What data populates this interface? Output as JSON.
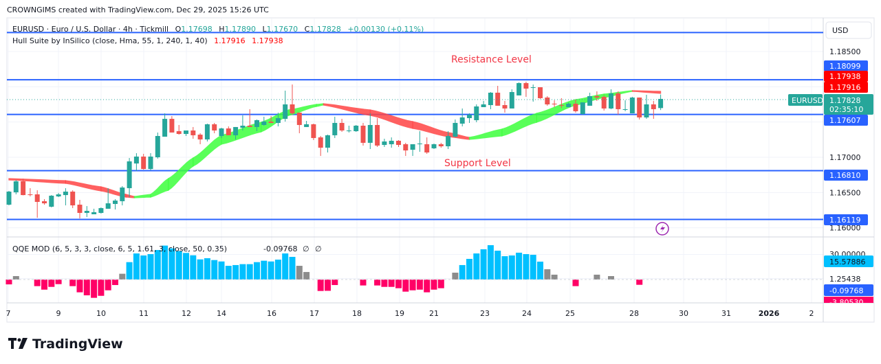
{
  "header": {
    "credit": "CROWNGIMS created with TradingView.com, Dec 29, 2025 15:26 UTC"
  },
  "legend": {
    "symbol_line": "EURUSD · Euro / U.S. Dollar · 4h · Tickmill",
    "o_label": "O",
    "o": "1.17698",
    "h_label": "H",
    "h": "1.17890",
    "l_label": "L",
    "l": "1.17670",
    "c_label": "C",
    "c": "1.17828",
    "change": "+0.00130 (+0.11%)",
    "hull_name": "Hull Suite by InSilico (close, Hma, 55, 1, 240, 1, 40)",
    "hull_v1": "1.17916",
    "hull_v2": "1.17938",
    "qqe_name": "QQE MOD (6, 5, 3, 3, close, 6, 5, 1.61, 3, close, 50, 0.35)",
    "qqe_value": "-0.09768",
    "qqe_null1": "∅",
    "qqe_null2": "∅"
  },
  "annotations": {
    "resistance": "Resistance Level",
    "support": "Support Level"
  },
  "price_axis": {
    "currency": "USD",
    "ticks": [
      "1.18500",
      "1.17000",
      "1.16500",
      "1.16000"
    ],
    "tick_values": [
      1.185,
      1.17,
      1.165,
      1.16
    ],
    "symbol_tag": "EURUSD",
    "last_price": "1.17828",
    "countdown": "02:35:10",
    "level_labels": [
      "1.18099",
      "1.17938",
      "1.17916",
      "1.17607",
      "1.16810",
      "1.16119"
    ]
  },
  "qqe_axis": {
    "ticks": [
      "30.00000",
      "1.25438"
    ],
    "labels": [
      "15.57886",
      "-0.09768",
      "-3.80530"
    ]
  },
  "time_axis": {
    "labels": [
      "7",
      "9",
      "10",
      "11",
      "12",
      "14",
      "16",
      "17",
      "18",
      "19",
      "21",
      "23",
      "24",
      "25",
      "28",
      "30",
      "31",
      "2026",
      "2"
    ]
  },
  "footer": {
    "brand": "TradingView"
  },
  "colors": {
    "up": "#26a69a",
    "down": "#ef5350",
    "level_line": "#2962ff",
    "hull_green": "#3dff3d",
    "hull_red": "#ff4545",
    "qqe_blue": "#00c0ff",
    "qqe_red": "#ff0066",
    "qqe_gray": "#8c8c8c",
    "annotation": "#f23645"
  },
  "chart_data": [
    {
      "type": "candlestick",
      "title": "EURUSD · Euro / U.S. Dollar · 4h · Tickmill",
      "ylim": [
        1.1595,
        1.1895
      ],
      "horizontal_levels": [
        1.18769,
        1.18099,
        1.17607,
        1.1681,
        1.16119
      ],
      "ohlc": [
        [
          1.16328,
          1.16523,
          1.16318,
          1.16513
        ],
        [
          1.16503,
          1.16679,
          1.16474,
          1.16659
        ],
        [
          1.16659,
          1.16698,
          1.1646,
          1.16464
        ],
        [
          1.16474,
          1.16562,
          1.16445,
          1.16464
        ],
        [
          1.16474,
          1.16532,
          1.16143,
          1.16367
        ],
        [
          1.16377,
          1.16406,
          1.16328,
          1.16347
        ],
        [
          1.16299,
          1.16464,
          1.16289,
          1.16455
        ],
        [
          1.16445,
          1.16494,
          1.16435,
          1.16474
        ],
        [
          1.16464,
          1.16562,
          1.16318,
          1.16513
        ],
        [
          1.16513,
          1.16532,
          1.16279,
          1.16318
        ],
        [
          1.16328,
          1.16396,
          1.16133,
          1.16211
        ],
        [
          1.16211,
          1.16308,
          1.16153,
          1.1624
        ],
        [
          1.16192,
          1.1627,
          1.16192,
          1.16221
        ],
        [
          1.16211,
          1.16289,
          1.16201,
          1.16279
        ],
        [
          1.1627,
          1.16562,
          1.1627,
          1.16347
        ],
        [
          1.16338,
          1.16406,
          1.1626,
          1.16386
        ],
        [
          1.16377,
          1.16591,
          1.16318,
          1.16571
        ],
        [
          1.16562,
          1.1699,
          1.16435,
          1.16942
        ],
        [
          1.16912,
          1.17058,
          1.16805,
          1.1701
        ],
        [
          1.1701,
          1.17049,
          1.16825,
          1.16834
        ],
        [
          1.16834,
          1.17058,
          1.16815,
          1.1701
        ],
        [
          1.17,
          1.17351,
          1.16981,
          1.17302
        ],
        [
          1.17292,
          1.17623,
          1.17292,
          1.17545
        ],
        [
          1.17545,
          1.17584,
          1.17351,
          1.17351
        ],
        [
          1.1737,
          1.17458,
          1.17321,
          1.17331
        ],
        [
          1.17331,
          1.1738,
          1.17302,
          1.1738
        ],
        [
          1.1738,
          1.17429,
          1.17263,
          1.17312
        ],
        [
          1.17321,
          1.17341,
          1.17185,
          1.17253
        ],
        [
          1.17253,
          1.17477,
          1.17224,
          1.17468
        ],
        [
          1.17468,
          1.17487,
          1.17341,
          1.1738
        ],
        [
          1.17302,
          1.17419,
          1.17273,
          1.17409
        ],
        [
          1.17409,
          1.17438,
          1.17312,
          1.17312
        ],
        [
          1.17312,
          1.17429,
          1.17253,
          1.17429
        ],
        [
          1.17419,
          1.17594,
          1.1738,
          1.17448
        ],
        [
          1.17448,
          1.17682,
          1.17429,
          1.17429
        ],
        [
          1.17429,
          1.17536,
          1.1737,
          1.17526
        ],
        [
          1.17458,
          1.17575,
          1.17448,
          1.17506
        ],
        [
          1.17506,
          1.17584,
          1.17487,
          1.17487
        ],
        [
          1.17487,
          1.17633,
          1.17438,
          1.17555
        ],
        [
          1.17545,
          1.17945,
          1.17506,
          1.1775
        ],
        [
          1.1775,
          1.18032,
          1.17604,
          1.17623
        ],
        [
          1.17633,
          1.17633,
          1.17341,
          1.17458
        ],
        [
          1.17429,
          1.17516,
          1.17429,
          1.17468
        ],
        [
          1.17468,
          1.17477,
          1.17244,
          1.17273
        ],
        [
          1.17282,
          1.17302,
          1.17019,
          1.17136
        ],
        [
          1.17136,
          1.17321,
          1.17068,
          1.17312
        ],
        [
          1.17312,
          1.17575,
          1.17273,
          1.17487
        ],
        [
          1.17487,
          1.17545,
          1.1736,
          1.1738
        ],
        [
          1.1737,
          1.17448,
          1.17351,
          1.1738
        ],
        [
          1.1737,
          1.17458,
          1.1736,
          1.17448
        ],
        [
          1.17448,
          1.17487,
          1.17166,
          1.17205
        ],
        [
          1.17205,
          1.17623,
          1.17117,
          1.17458
        ],
        [
          1.17458,
          1.17555,
          1.17146,
          1.17166
        ],
        [
          1.17175,
          1.17263,
          1.17146,
          1.17224
        ],
        [
          1.17185,
          1.17282,
          1.17136,
          1.17234
        ],
        [
          1.17234,
          1.17244,
          1.17146,
          1.17175
        ],
        [
          1.17185,
          1.17205,
          1.17019,
          1.17097
        ],
        [
          1.17107,
          1.17185,
          1.17019,
          1.17185
        ],
        [
          1.17185,
          1.1737,
          1.17078,
          1.17195
        ],
        [
          1.17185,
          1.17282,
          1.17049,
          1.17068
        ],
        [
          1.17127,
          1.17195,
          1.17117,
          1.17185
        ],
        [
          1.17185,
          1.17205,
          1.17136,
          1.17156
        ],
        [
          1.17156,
          1.1737,
          1.17117,
          1.17302
        ],
        [
          1.17292,
          1.17536,
          1.17282,
          1.17487
        ],
        [
          1.17477,
          1.17692,
          1.17438,
          1.17565
        ],
        [
          1.17555,
          1.17623,
          1.17487,
          1.17604
        ],
        [
          1.17526,
          1.1775,
          1.17497,
          1.17721
        ],
        [
          1.17711,
          1.17799,
          1.17711,
          1.1775
        ],
        [
          1.1774,
          1.17925,
          1.17682,
          1.17916
        ],
        [
          1.17916,
          1.18013,
          1.17731,
          1.17731
        ],
        [
          1.1774,
          1.17799,
          1.17633,
          1.17692
        ],
        [
          1.17692,
          1.17964,
          1.17692,
          1.17925
        ],
        [
          1.17877,
          1.18062,
          1.17877,
          1.18052
        ],
        [
          1.18052,
          1.18071,
          1.17857,
          1.17974
        ],
        [
          1.17993,
          1.18032,
          1.17789,
          1.17993
        ],
        [
          1.17993,
          1.17993,
          1.17828,
          1.17838
        ],
        [
          1.17847,
          1.17867,
          1.17731,
          1.1775
        ],
        [
          1.1776,
          1.17808,
          1.17711,
          1.1775
        ],
        [
          1.1774,
          1.17838,
          1.17701,
          1.17731
        ],
        [
          1.17711,
          1.17779,
          1.17711,
          1.1776
        ],
        [
          1.1776,
          1.17818,
          1.17633,
          1.17653
        ],
        [
          1.17614,
          1.17779,
          1.17604,
          1.17779
        ],
        [
          1.17731,
          1.17916,
          1.17731,
          1.17867
        ],
        [
          1.17867,
          1.17935,
          1.17799,
          1.17847
        ],
        [
          1.17857,
          1.17877,
          1.17662,
          1.17692
        ],
        [
          1.17692,
          1.17964,
          1.17682,
          1.17906
        ],
        [
          1.17906,
          1.17935,
          1.17604,
          1.17682
        ],
        [
          1.17682,
          1.17808,
          1.17653,
          1.17682
        ],
        [
          1.17623,
          1.17857,
          1.17623,
          1.17847
        ],
        [
          1.17847,
          1.17847,
          1.17536,
          1.17565
        ],
        [
          1.17565,
          1.17886,
          1.17545,
          1.1775
        ],
        [
          1.1775,
          1.17799,
          1.17545,
          1.17682
        ],
        [
          1.17698,
          1.1789,
          1.1767,
          1.17828
        ]
      ],
      "hull_band": [
        {
          "bar": 0,
          "a": 1.16698,
          "b": 1.16679,
          "trend": "down"
        },
        {
          "bar": 8,
          "a": 1.16669,
          "b": 1.1663,
          "trend": "down"
        },
        {
          "bar": 13,
          "a": 1.16581,
          "b": 1.16523,
          "trend": "down"
        },
        {
          "bar": 16.5,
          "a": 1.16474,
          "b": 1.16435,
          "trend": "down"
        },
        {
          "bar": 17.7,
          "a": 1.16445,
          "b": 1.16425,
          "trend": "up"
        },
        {
          "bar": 20,
          "a": 1.16474,
          "b": 1.16435,
          "trend": "up"
        },
        {
          "bar": 22.5,
          "a": 1.16698,
          "b": 1.16532,
          "trend": "up"
        },
        {
          "bar": 26,
          "a": 1.1699,
          "b": 1.16873,
          "trend": "up"
        },
        {
          "bar": 30,
          "a": 1.17312,
          "b": 1.17185,
          "trend": "up"
        },
        {
          "bar": 35.6,
          "a": 1.17497,
          "b": 1.1736,
          "trend": "up"
        },
        {
          "bar": 39.5,
          "a": 1.17672,
          "b": 1.17594,
          "trend": "up"
        },
        {
          "bar": 43.4,
          "a": 1.1775,
          "b": 1.17721,
          "trend": "up"
        },
        {
          "bar": 44.4,
          "a": 1.1776,
          "b": 1.1774,
          "trend": "down"
        },
        {
          "bar": 51,
          "a": 1.17672,
          "b": 1.17594,
          "trend": "down"
        },
        {
          "bar": 57,
          "a": 1.17506,
          "b": 1.17409,
          "trend": "down"
        },
        {
          "bar": 62,
          "a": 1.17351,
          "b": 1.17292,
          "trend": "down"
        },
        {
          "bar": 65,
          "a": 1.17282,
          "b": 1.17253,
          "trend": "up"
        },
        {
          "bar": 69.6,
          "a": 1.17399,
          "b": 1.17302,
          "trend": "up"
        },
        {
          "bar": 74.5,
          "a": 1.17623,
          "b": 1.17497,
          "trend": "up"
        },
        {
          "bar": 80,
          "a": 1.17818,
          "b": 1.1774,
          "trend": "up"
        },
        {
          "bar": 84,
          "a": 1.17896,
          "b": 1.17847,
          "trend": "up"
        },
        {
          "bar": 88,
          "a": 1.17945,
          "b": 1.17935,
          "trend": "down"
        },
        {
          "bar": 92,
          "a": 1.17935,
          "b": 1.17906,
          "trend": "down"
        }
      ]
    },
    {
      "type": "bar",
      "title": "QQE MOD (6, 5, 3, 3, close, 6, 5, 1.61, 3, close, 50, 0.35)",
      "ylim": [
        -30,
        50
      ],
      "values": [
        -5.8,
        4.1,
        0,
        0,
        -7.9,
        -12.1,
        -8.8,
        -5.5,
        0,
        -7.9,
        -15.3,
        -18.9,
        -21.9,
        -19.5,
        -12.9,
        -6.6,
        6.9,
        20.8,
        31.2,
        28.8,
        30.4,
        35.3,
        40.6,
        37.3,
        34.0,
        31.8,
        29.0,
        24.1,
        25.5,
        23.3,
        21.6,
        16.4,
        17.3,
        18.4,
        18.4,
        20.8,
        22.5,
        21.6,
        23.8,
        31.2,
        27.1,
        16.4,
        9.0,
        0,
        -13.7,
        -13.5,
        -6.6,
        0,
        0,
        0,
        -7.1,
        0,
        -7.1,
        -8.8,
        -8.8,
        -10.4,
        -14.5,
        -12.9,
        -12.1,
        -15.3,
        -12.1,
        -10.4,
        0,
        8.2,
        17.3,
        24.7,
        31.2,
        36.2,
        41.1,
        34.5,
        27.9,
        28.8,
        32.1,
        30.4,
        29.6,
        21.4,
        12.3,
        5.8,
        0,
        0,
        -7.9,
        0,
        0,
        5.8,
        0,
        4.1,
        0,
        0,
        0,
        -6.3,
        0,
        0,
        -0.09768
      ],
      "colors": [
        "red",
        "gray",
        "",
        "",
        "red",
        "red",
        "red",
        "red",
        "",
        "red",
        "red",
        "red",
        "red",
        "red",
        "red",
        "red",
        "gray",
        "blue",
        "blue",
        "blue",
        "blue",
        "blue",
        "blue",
        "blue",
        "blue",
        "blue",
        "blue",
        "blue",
        "blue",
        "blue",
        "blue",
        "blue",
        "blue",
        "blue",
        "blue",
        "blue",
        "blue",
        "blue",
        "blue",
        "blue",
        "blue",
        "gray",
        "gray",
        "",
        "red",
        "red",
        "red",
        "",
        "",
        "",
        "red",
        "",
        "red",
        "red",
        "red",
        "red",
        "red",
        "red",
        "red",
        "red",
        "red",
        "red",
        "",
        "gray",
        "blue",
        "blue",
        "blue",
        "blue",
        "blue",
        "blue",
        "blue",
        "blue",
        "blue",
        "blue",
        "blue",
        "blue",
        "gray",
        "gray",
        "",
        "",
        "red",
        "",
        "",
        "gray",
        "",
        "gray",
        "",
        "",
        "",
        "red",
        "",
        "",
        ""
      ]
    }
  ]
}
